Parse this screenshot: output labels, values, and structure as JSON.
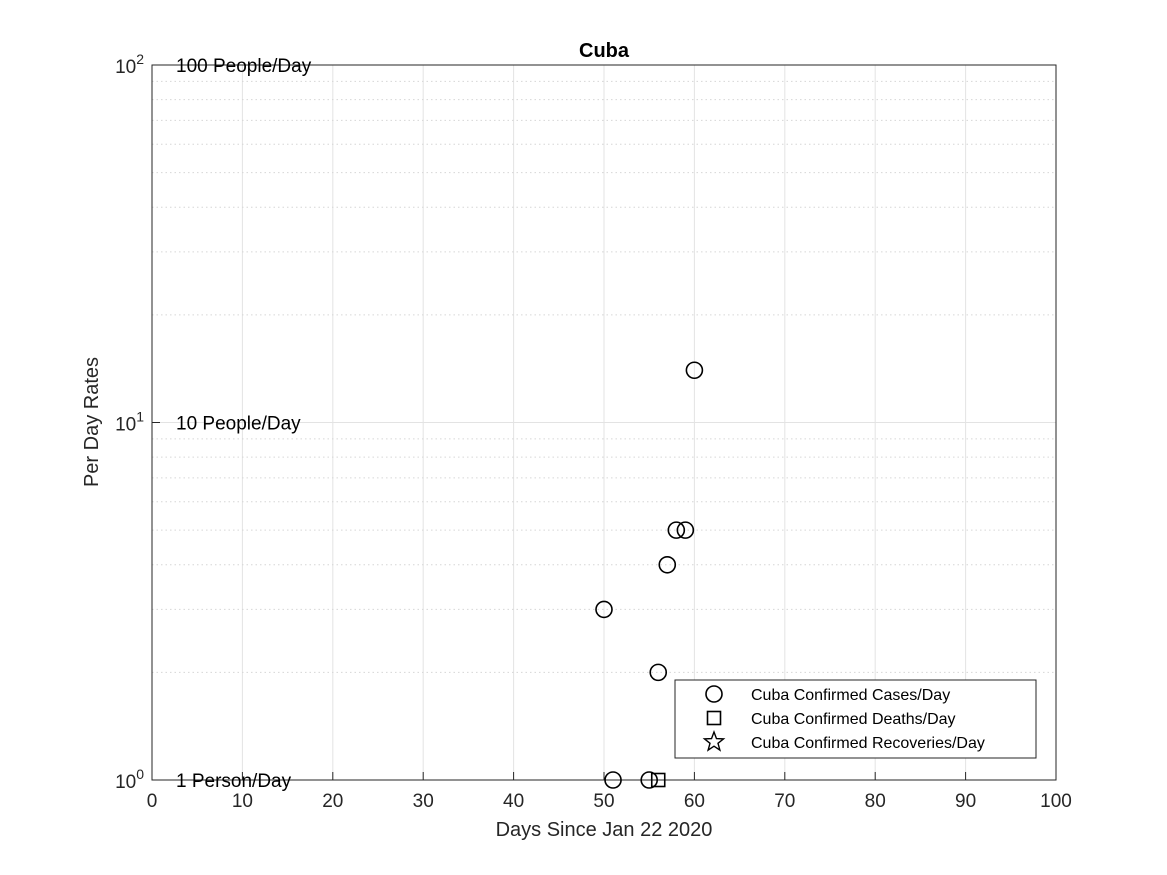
{
  "chart_data": {
    "type": "scatter",
    "title": "Cuba",
    "xlabel": "Days Since Jan 22 2020",
    "ylabel": "Per Day Rates",
    "xlim": [
      0,
      100
    ],
    "ylim": [
      1,
      100
    ],
    "yscale": "log",
    "grid": true,
    "minor_grid": true,
    "x_ticks": [
      "0",
      "10",
      "20",
      "30",
      "40",
      "50",
      "60",
      "70",
      "80",
      "90",
      "100"
    ],
    "y_ticks": [
      {
        "base": "10",
        "exp": "0",
        "value": 1
      },
      {
        "base": "10",
        "exp": "1",
        "value": 10
      },
      {
        "base": "10",
        "exp": "2",
        "value": 100
      }
    ],
    "annotations": [
      {
        "text": "100 People/Day",
        "y": 100
      },
      {
        "text": "10 People/Day",
        "y": 10
      },
      {
        "text": "1 Person/Day",
        "y": 1
      }
    ],
    "legend_position": "bottom-right",
    "series": [
      {
        "name": "Cuba Confirmed Cases/Day",
        "marker": "circle",
        "color": "#000000",
        "points": [
          {
            "x": 50,
            "y": 3
          },
          {
            "x": 51,
            "y": 1
          },
          {
            "x": 55,
            "y": 1
          },
          {
            "x": 56,
            "y": 2
          },
          {
            "x": 57,
            "y": 4
          },
          {
            "x": 58,
            "y": 5
          },
          {
            "x": 59,
            "y": 5
          },
          {
            "x": 60,
            "y": 14
          }
        ]
      },
      {
        "name": "Cuba Confirmed Deaths/Day",
        "marker": "square",
        "color": "#000000",
        "points": [
          {
            "x": 56,
            "y": 1
          }
        ]
      },
      {
        "name": "Cuba Confirmed Recoveries/Day",
        "marker": "star",
        "color": "#000000",
        "points": []
      }
    ]
  }
}
